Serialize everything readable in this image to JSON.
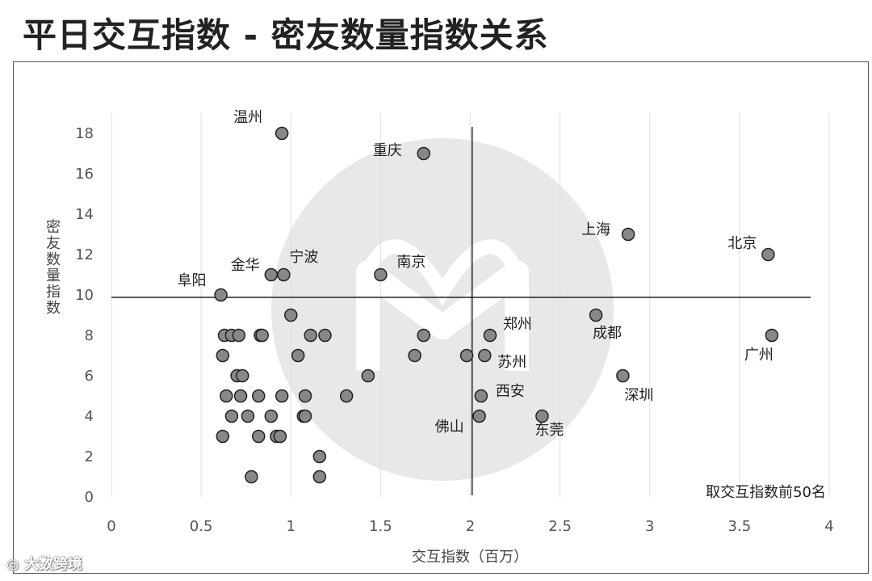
{
  "page_title": "平日交互指数 - 密友数量指数关系",
  "watermark_text": "大数跨境",
  "chart_data": {
    "type": "scatter",
    "title": "",
    "xlabel": "交互指数（百万）",
    "ylabel": "密友数量指数",
    "xlim": [
      0,
      4
    ],
    "ylim": [
      0,
      19
    ],
    "x_ticks": [
      0,
      0.5,
      1,
      1.5,
      2,
      2.5,
      3,
      3.5,
      4
    ],
    "x_tick_labels": [
      "0",
      "0.5",
      "1",
      "1.5",
      "2",
      "2.5",
      "3",
      "3.5",
      "4"
    ],
    "y_ticks": [
      0,
      2,
      4,
      6,
      8,
      10,
      12,
      14,
      16,
      18
    ],
    "y_tick_labels": [
      "0",
      "2",
      "4",
      "6",
      "8",
      "10",
      "12",
      "14",
      "16",
      "18"
    ],
    "grid": "vertical",
    "reference_lines": {
      "x": 2.01,
      "y": 9.88
    },
    "annotation": "取交互指数前50名",
    "marker_color": "#888888",
    "marker_edge": "#222222",
    "points": [
      {
        "x": 0.95,
        "y": 18,
        "label": "温州"
      },
      {
        "x": 1.74,
        "y": 17,
        "label": "重庆"
      },
      {
        "x": 2.88,
        "y": 13,
        "label": "上海"
      },
      {
        "x": 3.66,
        "y": 12,
        "label": "北京"
      },
      {
        "x": 0.89,
        "y": 11,
        "label": "金华"
      },
      {
        "x": 0.96,
        "y": 11,
        "label": "宁波"
      },
      {
        "x": 1.5,
        "y": 11,
        "label": "南京"
      },
      {
        "x": 0.61,
        "y": 10,
        "label": "阜阳"
      },
      {
        "x": 2.7,
        "y": 9,
        "label": "成都"
      },
      {
        "x": 2.11,
        "y": 8,
        "label": "郑州"
      },
      {
        "x": 3.68,
        "y": 8,
        "label": "广州"
      },
      {
        "x": 2.08,
        "y": 7,
        "label": "苏州"
      },
      {
        "x": 2.85,
        "y": 6,
        "label": "深圳"
      },
      {
        "x": 2.06,
        "y": 5,
        "label": "西安"
      },
      {
        "x": 2.05,
        "y": 4,
        "label": "佛山"
      },
      {
        "x": 2.4,
        "y": 4,
        "label": "东莞"
      },
      {
        "x": 1.0,
        "y": 9
      },
      {
        "x": 0.63,
        "y": 8
      },
      {
        "x": 0.67,
        "y": 8
      },
      {
        "x": 0.71,
        "y": 8
      },
      {
        "x": 0.83,
        "y": 8
      },
      {
        "x": 0.84,
        "y": 8
      },
      {
        "x": 1.11,
        "y": 8
      },
      {
        "x": 1.19,
        "y": 8
      },
      {
        "x": 1.74,
        "y": 8
      },
      {
        "x": 0.62,
        "y": 7
      },
      {
        "x": 1.04,
        "y": 7
      },
      {
        "x": 1.69,
        "y": 7
      },
      {
        "x": 1.98,
        "y": 7
      },
      {
        "x": 0.7,
        "y": 6
      },
      {
        "x": 0.73,
        "y": 6
      },
      {
        "x": 1.43,
        "y": 6
      },
      {
        "x": 0.64,
        "y": 5
      },
      {
        "x": 0.72,
        "y": 5
      },
      {
        "x": 0.82,
        "y": 5
      },
      {
        "x": 0.95,
        "y": 5
      },
      {
        "x": 1.08,
        "y": 5
      },
      {
        "x": 1.31,
        "y": 5
      },
      {
        "x": 0.67,
        "y": 4
      },
      {
        "x": 0.76,
        "y": 4
      },
      {
        "x": 0.89,
        "y": 4
      },
      {
        "x": 1.07,
        "y": 4
      },
      {
        "x": 1.08,
        "y": 4
      },
      {
        "x": 0.62,
        "y": 3
      },
      {
        "x": 0.82,
        "y": 3
      },
      {
        "x": 0.92,
        "y": 3
      },
      {
        "x": 0.94,
        "y": 3
      },
      {
        "x": 1.16,
        "y": 2
      },
      {
        "x": 0.78,
        "y": 1
      },
      {
        "x": 1.16,
        "y": 1
      }
    ]
  }
}
